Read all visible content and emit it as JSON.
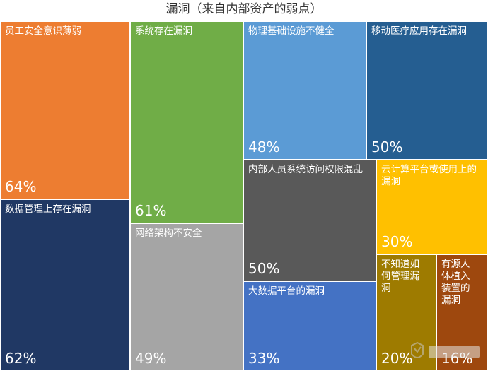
{
  "title": "漏洞（来自内部资产的弱点）",
  "chart_data": {
    "type": "treemap",
    "title": "漏洞（来自内部资产的弱点）",
    "items": [
      {
        "label": "员工安全意识薄弱",
        "value": 64,
        "display": "64%",
        "color": "#ED7D31"
      },
      {
        "label": "数据管理上存在漏洞",
        "value": 62,
        "display": "62%",
        "color": "#203864"
      },
      {
        "label": "系统存在漏洞",
        "value": 61,
        "display": "61%",
        "color": "#70AD47"
      },
      {
        "label": "网络架构不安全",
        "value": 49,
        "display": "49%",
        "color": "#A5A5A5"
      },
      {
        "label": "物理基础设施不健全",
        "value": 48,
        "display": "48%",
        "color": "#5B9BD5"
      },
      {
        "label": "移动医疗应用存在漏洞",
        "value": 50,
        "display": "50%",
        "color": "#255E91"
      },
      {
        "label": "内部人员系统访问权限混乱",
        "value": 50,
        "display": "50%",
        "color": "#595959"
      },
      {
        "label": "大数据平台的漏洞",
        "value": 33,
        "display": "33%",
        "color": "#4472C4"
      },
      {
        "label": "云计算平台或使用上的漏洞",
        "value": 30,
        "display": "30%",
        "color": "#FFC000"
      },
      {
        "label": "不知道如何管理漏洞",
        "value": 20,
        "display": "20%",
        "color": "#9E7B00"
      },
      {
        "label": "有源人体植入装置的漏洞",
        "value": 16,
        "display": "16%",
        "color": "#9E480E"
      }
    ]
  }
}
